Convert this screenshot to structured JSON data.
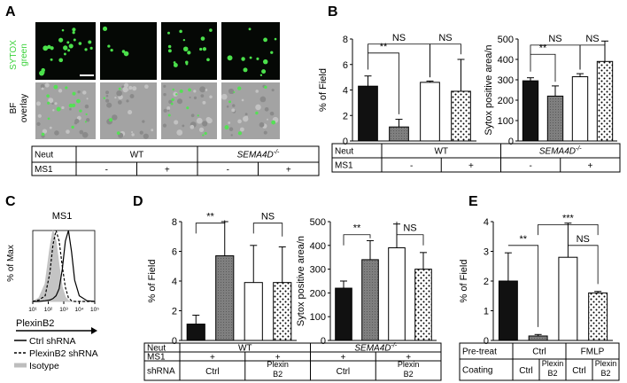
{
  "panels": {
    "A": {
      "letter": "A",
      "row_labels": [
        {
          "line1": "SYTOX",
          "line2": "green"
        },
        {
          "line1": "BF",
          "line2": "overlay"
        }
      ],
      "table": {
        "row1": {
          "label": "Neut",
          "groups": [
            "WT",
            "SEMA4D",
            "-/-"
          ]
        },
        "row2": {
          "label": "MS1",
          "cells": [
            "-",
            "+",
            "-",
            "+"
          ]
        }
      },
      "colors": {
        "sytox": "#3bd23b",
        "bf": "#a9a9a9"
      }
    },
    "B": {
      "letter": "B"
    },
    "C": {
      "letter": "C",
      "title": "MS1",
      "ylabel": "% of Max",
      "xlabel": "PlexinB2",
      "xticks": [
        "10¹",
        "10²",
        "10³",
        "10⁴",
        "10⁵"
      ],
      "legend": [
        "Ctrl shRNA",
        "PlexinB2 shRNA",
        "Isotype"
      ]
    },
    "D": {
      "letter": "D"
    },
    "E": {
      "letter": "E"
    }
  },
  "tables": {
    "B": {
      "row1": {
        "label": "Neut",
        "groups": [
          "WT",
          "SEMA4D",
          "-/-"
        ]
      },
      "row2": {
        "label": "MS1",
        "cells": [
          "-",
          "+",
          "-",
          "+"
        ]
      }
    },
    "D": {
      "row1": {
        "label": "Neut",
        "groups": [
          "WT",
          "SEMA4D",
          "-/-"
        ]
      },
      "row2": {
        "label": "MS1",
        "cells": [
          "+",
          "+",
          "+",
          "+"
        ]
      },
      "row3": {
        "label": "shRNA",
        "cells": [
          "Ctrl",
          "Plexin B2",
          "Ctrl",
          "Plexin B2"
        ]
      }
    },
    "E": {
      "row1": {
        "label": "Pre-treat",
        "groups": [
          "Ctrl",
          "FMLP"
        ]
      },
      "row2": {
        "label": "Coating",
        "cells": [
          "Ctrl",
          "Plexin B2",
          "Ctrl",
          "Plexin B2"
        ]
      }
    }
  },
  "chart_data": [
    {
      "id": "B1",
      "type": "bar",
      "categories": [
        "WT -",
        "WT +",
        "SEMA4D-/- -",
        "SEMA4D-/- +"
      ],
      "values": [
        4.3,
        1.1,
        4.6,
        3.9
      ],
      "errors": [
        0.8,
        0.6,
        0.1,
        2.5
      ],
      "ylabel": "% of Field",
      "ylim": [
        0,
        8
      ],
      "yticks": [
        0,
        2,
        4,
        6,
        8
      ],
      "fills": [
        "black",
        "grey",
        "white",
        "dots"
      ],
      "sig": [
        {
          "text": "**",
          "from": 0,
          "to": 1,
          "y": 6.9,
          "drops": [
            5.6,
            2.1
          ]
        },
        {
          "text": "NS",
          "from": 0,
          "to": 2,
          "y": 7.6,
          "drops": [
            6.9,
            5.0
          ]
        },
        {
          "text": "NS",
          "from": 2,
          "to": 3,
          "y": 7.6,
          "drops": [
            5.0,
            6.8
          ]
        }
      ]
    },
    {
      "id": "B2",
      "type": "bar",
      "categories": [
        "WT -",
        "WT +",
        "SEMA4D-/- -",
        "SEMA4D-/- +"
      ],
      "values": [
        295,
        220,
        315,
        390
      ],
      "errors": [
        15,
        50,
        15,
        100
      ],
      "ylabel": "Sytox positive area/n",
      "ylim": [
        0,
        500
      ],
      "yticks": [
        0,
        100,
        200,
        300,
        400,
        500
      ],
      "fills": [
        "black",
        "grey",
        "white",
        "dots"
      ],
      "sig": [
        {
          "text": "**",
          "from": 0,
          "to": 1,
          "y": 425,
          "drops": [
            340,
            290
          ]
        },
        {
          "text": "NS",
          "from": 0,
          "to": 2,
          "y": 470,
          "drops": [
            425,
            350
          ]
        },
        {
          "text": "NS",
          "from": 2,
          "to": 3,
          "y": 470,
          "drops": [
            350,
            460
          ]
        }
      ]
    },
    {
      "id": "C1",
      "type": "line",
      "title": "MS1",
      "x": [
        1,
        1.4,
        1.8,
        2.1,
        2.3,
        2.5,
        2.7,
        2.9,
        3.1,
        3.3,
        3.5,
        3.7,
        4,
        4.5,
        5
      ],
      "series": [
        {
          "name": "Ctrl shRNA",
          "style": "solid",
          "values": [
            0,
            0,
            1,
            2,
            4,
            8,
            18,
            45,
            85,
            100,
            70,
            30,
            8,
            1,
            0
          ]
        },
        {
          "name": "PlexinB2 shRNA",
          "style": "dashed",
          "values": [
            0,
            2,
            8,
            40,
            80,
            100,
            85,
            50,
            20,
            5,
            1,
            0,
            0,
            0,
            0
          ]
        },
        {
          "name": "Isotype",
          "style": "filled",
          "values": [
            0,
            5,
            25,
            75,
            100,
            85,
            50,
            20,
            6,
            1,
            0,
            0,
            0,
            0,
            0
          ]
        }
      ],
      "xlabel": "PlexinB2",
      "ylabel": "% of Max",
      "xlim": [
        1,
        5
      ],
      "ylim": [
        0,
        100
      ]
    },
    {
      "id": "D1",
      "type": "bar",
      "categories": [
        "WT Ctrl",
        "WT Plexin B2",
        "SEMA4D-/- Ctrl",
        "SEMA4D-/- Plexin B2"
      ],
      "values": [
        1.1,
        5.7,
        3.9,
        3.9
      ],
      "errors": [
        0.6,
        2.3,
        2.5,
        2.4
      ],
      "ylabel": "% of Field",
      "ylim": [
        0,
        8
      ],
      "yticks": [
        0,
        2,
        4,
        6,
        8
      ],
      "fills": [
        "black",
        "grey",
        "white",
        "dots"
      ],
      "sig": [
        {
          "text": "**",
          "from": 0,
          "to": 1,
          "y": 7.9,
          "drops": [
            7.2,
            8.1
          ]
        },
        {
          "text": "NS",
          "from": 2,
          "to": 3,
          "y": 7.9,
          "drops": [
            7.2,
            7.0
          ]
        }
      ]
    },
    {
      "id": "D2",
      "type": "bar",
      "categories": [
        "WT Ctrl",
        "WT Plexin B2",
        "SEMA4D-/- Ctrl",
        "SEMA4D-/- Plexin B2"
      ],
      "values": [
        220,
        340,
        390,
        300
      ],
      "errors": [
        30,
        80,
        100,
        70
      ],
      "ylabel": "Sytox positive area/n",
      "ylim": [
        0,
        500
      ],
      "yticks": [
        0,
        100,
        200,
        300,
        400,
        500
      ],
      "fills": [
        "black",
        "grey",
        "white",
        "dots"
      ],
      "sig": [
        {
          "text": "**",
          "from": 0,
          "to": 1,
          "y": 445,
          "drops": [
            400,
            430
          ]
        },
        {
          "text": "NS",
          "from": 2,
          "to": 3,
          "y": 445,
          "drops": [
            500,
            400
          ]
        }
      ]
    },
    {
      "id": "E1",
      "type": "bar",
      "categories": [
        "Ctrl Ctrl",
        "Ctrl Plexin B2",
        "FMLP Ctrl",
        "FMLP Plexin B2"
      ],
      "values": [
        2.0,
        0.15,
        2.8,
        1.6
      ],
      "errors": [
        0.95,
        0.05,
        1.15,
        0.05
      ],
      "ylabel": "% of Field",
      "ylim": [
        0,
        4
      ],
      "yticks": [
        0,
        1,
        2,
        3,
        4
      ],
      "fills": [
        "black",
        "grey",
        "white",
        "dots"
      ],
      "sig": [
        {
          "text": "**",
          "from": 0,
          "to": 1,
          "y": 3.2,
          "drops": [
            3.2,
            0.45
          ]
        },
        {
          "text": "NS",
          "from": 2,
          "to": 3,
          "y": 3.2,
          "drops": [
            3.2,
            1.9
          ]
        },
        {
          "text": "***",
          "from": 1,
          "to": 3,
          "y": 3.9,
          "drops": [
            3.55,
            3.55
          ]
        }
      ]
    }
  ]
}
